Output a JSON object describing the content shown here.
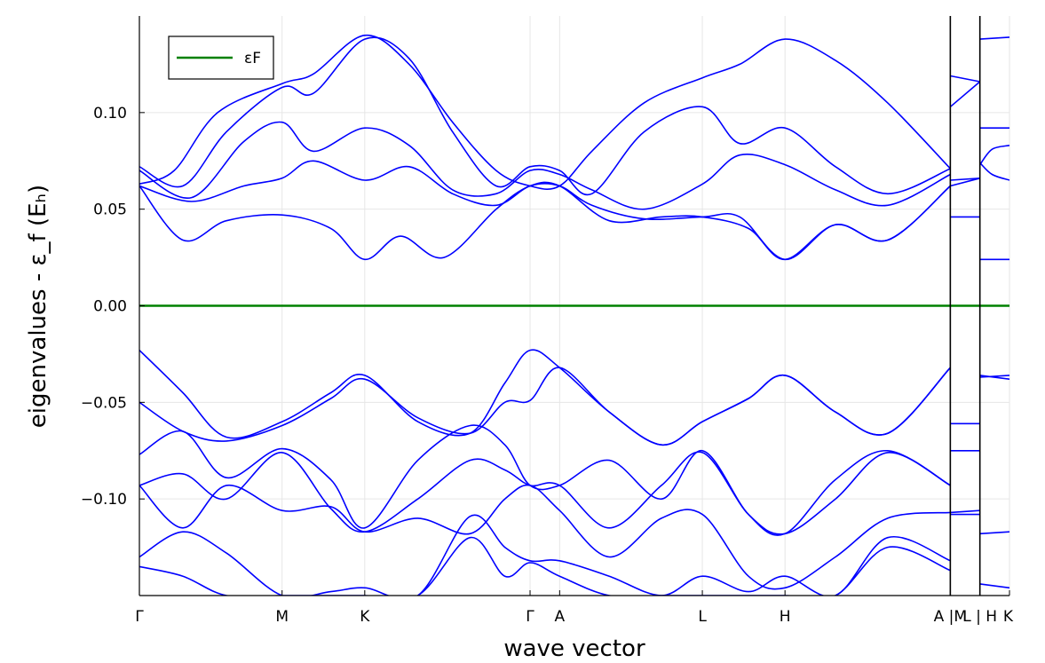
{
  "chart_data": {
    "type": "line",
    "xlabel": "wave vector",
    "ylabel": "eigenvalues - ε_f  (Eₕ)",
    "ylim": [
      -0.15,
      0.15
    ],
    "yticks": [
      {
        "value": 0.1,
        "label": "0.10"
      },
      {
        "value": 0.05,
        "label": "0.05"
      },
      {
        "value": 0.0,
        "label": "0.00"
      },
      {
        "value": -0.05,
        "label": "−0.05"
      },
      {
        "value": -0.1,
        "label": "−0.10"
      }
    ],
    "xlim": [
      0,
      1
    ],
    "kpath_ticks": [
      {
        "label": "Γ",
        "x": 0.0
      },
      {
        "label": "M",
        "x": 0.164
      },
      {
        "label": "K",
        "x": 0.259
      },
      {
        "label": "Γ",
        "x": 0.449
      },
      {
        "label": "A",
        "x": 0.483
      },
      {
        "label": "L",
        "x": 0.647
      },
      {
        "label": "H",
        "x": 0.742
      },
      {
        "label": "A |M",
        "x": 0.932
      },
      {
        "label": "L | H",
        "x": 0.966
      },
      {
        "label": "K",
        "x": 1.0
      }
    ],
    "path_breaks": [
      0.932,
      0.966
    ],
    "grid": true,
    "legend_position": "top-left",
    "colors": {
      "bands": "#0000ff",
      "fermi": "#008000"
    },
    "fermi_level": {
      "name": "εF",
      "y": 0.0
    },
    "series": [
      {
        "x": [
          0.0,
          0.04,
          0.09,
          0.164,
          0.2,
          0.259,
          0.31,
          0.36,
          0.41,
          0.449,
          0.483,
          0.52,
          0.58,
          0.647,
          0.69,
          0.742,
          0.8,
          0.86,
          0.932
        ],
        "y": [
          0.063,
          0.07,
          0.1,
          0.115,
          0.12,
          0.14,
          0.125,
          0.095,
          0.07,
          0.062,
          0.062,
          0.08,
          0.105,
          0.118,
          0.125,
          0.138,
          0.127,
          0.105,
          0.071
        ]
      },
      {
        "x": [
          0.0,
          0.05,
          0.1,
          0.164,
          0.2,
          0.259,
          0.31,
          0.36,
          0.41,
          0.449,
          0.483,
          0.52,
          0.58,
          0.647,
          0.69,
          0.742,
          0.8,
          0.86,
          0.932
        ],
        "y": [
          0.072,
          0.062,
          0.09,
          0.113,
          0.11,
          0.138,
          0.128,
          0.09,
          0.062,
          0.072,
          0.07,
          0.058,
          0.09,
          0.103,
          0.084,
          0.092,
          0.072,
          0.058,
          0.071
        ]
      },
      {
        "x": [
          0.0,
          0.06,
          0.12,
          0.164,
          0.2,
          0.259,
          0.31,
          0.36,
          0.41,
          0.449,
          0.483,
          0.52,
          0.58,
          0.647,
          0.69,
          0.742,
          0.8,
          0.86,
          0.932
        ],
        "y": [
          0.07,
          0.056,
          0.085,
          0.095,
          0.08,
          0.092,
          0.083,
          0.06,
          0.058,
          0.07,
          0.068,
          0.06,
          0.05,
          0.063,
          0.078,
          0.073,
          0.06,
          0.052,
          0.068
        ]
      },
      {
        "x": [
          0.0,
          0.06,
          0.12,
          0.164,
          0.2,
          0.259,
          0.31,
          0.36,
          0.41,
          0.449,
          0.483,
          0.52,
          0.58,
          0.647,
          0.69,
          0.742,
          0.8,
          0.86,
          0.932
        ],
        "y": [
          0.062,
          0.054,
          0.062,
          0.066,
          0.075,
          0.065,
          0.072,
          0.058,
          0.052,
          0.062,
          0.062,
          0.052,
          0.045,
          0.046,
          0.046,
          0.024,
          0.042,
          0.034,
          0.062
        ]
      },
      {
        "x": [
          0.0,
          0.05,
          0.1,
          0.164,
          0.22,
          0.259,
          0.3,
          0.35,
          0.41,
          0.449,
          0.483,
          0.54,
          0.6,
          0.647,
          0.7,
          0.742,
          0.8,
          0.86,
          0.932
        ],
        "y": [
          0.062,
          0.034,
          0.044,
          0.047,
          0.04,
          0.024,
          0.036,
          0.025,
          0.05,
          0.062,
          0.062,
          0.044,
          0.046,
          0.046,
          0.04,
          0.024,
          0.042,
          0.034,
          0.062
        ]
      },
      {
        "x": [
          0.0,
          0.05,
          0.1,
          0.164,
          0.22,
          0.259,
          0.32,
          0.38,
          0.42,
          0.449,
          0.483,
          0.54,
          0.6,
          0.647,
          0.7,
          0.742,
          0.8,
          0.86,
          0.932
        ],
        "y": [
          -0.023,
          -0.045,
          -0.068,
          -0.06,
          -0.045,
          -0.036,
          -0.06,
          -0.066,
          -0.04,
          -0.023,
          -0.032,
          -0.055,
          -0.072,
          -0.06,
          -0.048,
          -0.036,
          -0.055,
          -0.066,
          -0.032
        ]
      },
      {
        "x": [
          0.0,
          0.05,
          0.1,
          0.164,
          0.22,
          0.259,
          0.32,
          0.38,
          0.42,
          0.449,
          0.483,
          0.54,
          0.6,
          0.647,
          0.7,
          0.742,
          0.8,
          0.86,
          0.932
        ],
        "y": [
          -0.05,
          -0.065,
          -0.07,
          -0.062,
          -0.048,
          -0.038,
          -0.058,
          -0.066,
          -0.05,
          -0.049,
          -0.032,
          -0.055,
          -0.072,
          -0.06,
          -0.048,
          -0.036,
          -0.055,
          -0.066,
          -0.032
        ]
      },
      {
        "x": [
          0.0,
          0.05,
          0.1,
          0.164,
          0.22,
          0.259,
          0.32,
          0.38,
          0.42,
          0.449,
          0.483,
          0.54,
          0.6,
          0.647,
          0.7,
          0.742,
          0.8,
          0.86,
          0.932
        ],
        "y": [
          -0.077,
          -0.065,
          -0.089,
          -0.074,
          -0.09,
          -0.115,
          -0.08,
          -0.062,
          -0.072,
          -0.093,
          -0.093,
          -0.08,
          -0.1,
          -0.075,
          -0.108,
          -0.118,
          -0.09,
          -0.075,
          -0.093
        ]
      },
      {
        "x": [
          0.0,
          0.05,
          0.1,
          0.164,
          0.22,
          0.259,
          0.32,
          0.38,
          0.42,
          0.449,
          0.483,
          0.54,
          0.6,
          0.647,
          0.7,
          0.742,
          0.8,
          0.86,
          0.932
        ],
        "y": [
          -0.093,
          -0.087,
          -0.1,
          -0.076,
          -0.105,
          -0.117,
          -0.1,
          -0.08,
          -0.085,
          -0.093,
          -0.093,
          -0.115,
          -0.093,
          -0.076,
          -0.108,
          -0.118,
          -0.1,
          -0.076,
          -0.093
        ]
      },
      {
        "x": [
          0.0,
          0.05,
          0.1,
          0.164,
          0.22,
          0.259,
          0.32,
          0.38,
          0.42,
          0.449,
          0.483,
          0.54,
          0.6,
          0.647,
          0.7,
          0.742,
          0.8,
          0.86,
          0.932
        ],
        "y": [
          -0.093,
          -0.115,
          -0.093,
          -0.106,
          -0.104,
          -0.117,
          -0.11,
          -0.118,
          -0.1,
          -0.093,
          -0.106,
          -0.13,
          -0.11,
          -0.108,
          -0.14,
          -0.146,
          -0.13,
          -0.11,
          -0.107
        ]
      },
      {
        "x": [
          0.0,
          0.05,
          0.1,
          0.164,
          0.22,
          0.259,
          0.32,
          0.38,
          0.42,
          0.449,
          0.483,
          0.54,
          0.6,
          0.647,
          0.7,
          0.742,
          0.8,
          0.86,
          0.932
        ],
        "y": [
          -0.13,
          -0.117,
          -0.128,
          -0.15,
          -0.148,
          -0.146,
          -0.15,
          -0.109,
          -0.125,
          -0.132,
          -0.132,
          -0.14,
          -0.15,
          -0.14,
          -0.148,
          -0.14,
          -0.15,
          -0.12,
          -0.132
        ]
      },
      {
        "x": [
          0.0,
          0.05,
          0.1,
          0.164,
          0.22,
          0.259,
          0.32,
          0.38,
          0.42,
          0.449,
          0.483,
          0.54,
          0.6,
          0.647,
          0.7,
          0.742,
          0.8,
          0.86,
          0.932
        ],
        "y": [
          -0.135,
          -0.14,
          -0.15,
          -0.15,
          -0.15,
          -0.15,
          -0.15,
          -0.12,
          -0.14,
          -0.133,
          -0.14,
          -0.15,
          -0.15,
          -0.15,
          -0.15,
          -0.15,
          -0.15,
          -0.125,
          -0.137
        ]
      },
      {
        "x": [
          0.932,
          0.966
        ],
        "y": [
          0.119,
          0.116
        ]
      },
      {
        "x": [
          0.932,
          0.966
        ],
        "y": [
          0.103,
          0.116
        ]
      },
      {
        "x": [
          0.932,
          0.966
        ],
        "y": [
          0.065,
          0.066
        ]
      },
      {
        "x": [
          0.932,
          0.966
        ],
        "y": [
          0.062,
          0.066
        ]
      },
      {
        "x": [
          0.932,
          0.966
        ],
        "y": [
          0.046,
          0.046
        ]
      },
      {
        "x": [
          0.932,
          0.966
        ],
        "y": [
          -0.061,
          -0.061
        ]
      },
      {
        "x": [
          0.932,
          0.966
        ],
        "y": [
          -0.075,
          -0.075
        ]
      },
      {
        "x": [
          0.932,
          0.966
        ],
        "y": [
          -0.107,
          -0.106
        ]
      },
      {
        "x": [
          0.932,
          0.966
        ],
        "y": [
          -0.108,
          -0.108
        ]
      },
      {
        "x": [
          0.966,
          1.0
        ],
        "y": [
          0.138,
          0.139
        ]
      },
      {
        "x": [
          0.966,
          1.0
        ],
        "y": [
          0.092,
          0.092
        ]
      },
      {
        "x": [
          0.966,
          0.98,
          1.0
        ],
        "y": [
          0.073,
          0.081,
          0.083
        ]
      },
      {
        "x": [
          0.966,
          0.98,
          1.0
        ],
        "y": [
          0.074,
          0.068,
          0.065
        ]
      },
      {
        "x": [
          0.966,
          1.0
        ],
        "y": [
          0.024,
          0.024
        ]
      },
      {
        "x": [
          0.966,
          1.0
        ],
        "y": [
          -0.037,
          -0.036
        ]
      },
      {
        "x": [
          0.966,
          1.0
        ],
        "y": [
          -0.036,
          -0.038
        ]
      },
      {
        "x": [
          0.966,
          1.0
        ],
        "y": [
          -0.118,
          -0.117
        ]
      },
      {
        "x": [
          0.966,
          1.0
        ],
        "y": [
          -0.144,
          -0.146
        ]
      }
    ]
  }
}
